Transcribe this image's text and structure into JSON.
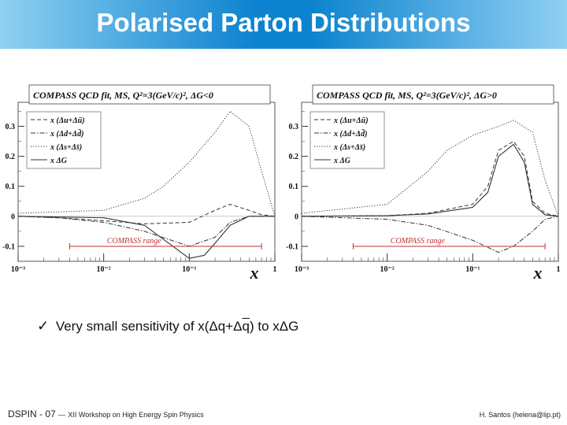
{
  "slide": {
    "title": "Polarised Parton Distributions",
    "bullet": {
      "check": "✓",
      "pre": "Very small sensitivity of x(Δq+Δ",
      "overline_q": "q",
      "post": ") to xΔG"
    },
    "footer_conference": "DSPIN - 07",
    "footer_dash": "—",
    "footer_subtitle": "XII Workshop on High Energy Spin Physics",
    "footer_author": "H. Santos (helena@lip.pt)"
  },
  "colors": {
    "title_bar": "#0d83cf",
    "title_text": "#ffffff",
    "curve": "#333333",
    "compass_range": "#c03030"
  },
  "chart_data": [
    {
      "type": "line",
      "title": "COMPASS QCD fit, MS, Q²=3(GeV/c)², ΔG<0",
      "xlabel": "x",
      "ylabel": "",
      "xscale": "log",
      "xlim": [
        0.001,
        1
      ],
      "ylim": [
        -0.15,
        0.38
      ],
      "xticks": [
        {
          "x": 0.001,
          "label": "10⁻³"
        },
        {
          "x": 0.01,
          "label": "10⁻²"
        },
        {
          "x": 0.1,
          "label": "10⁻¹"
        },
        {
          "x": 1,
          "label": "1"
        }
      ],
      "yticks": [
        {
          "y": -0.1,
          "label": "-0.1"
        },
        {
          "y": 0,
          "label": "0"
        },
        {
          "y": 0.1,
          "label": "0.1"
        },
        {
          "y": 0.2,
          "label": "0.2"
        },
        {
          "y": 0.3,
          "label": "0.3"
        }
      ],
      "annotation": {
        "text": "COMPASS range",
        "x_range": [
          0.004,
          0.7
        ]
      },
      "series": [
        {
          "name": "x (Δu+Δū)",
          "style": "dashed",
          "x": [
            0.001,
            0.003,
            0.01,
            0.03,
            0.1,
            0.2,
            0.3,
            0.5,
            0.7,
            1
          ],
          "y": [
            0,
            -0.005,
            -0.015,
            -0.025,
            -0.02,
            0.02,
            0.04,
            0.02,
            0.005,
            0
          ]
        },
        {
          "name": "x (Δd+Δd̄)",
          "style": "dashdot",
          "x": [
            0.001,
            0.003,
            0.01,
            0.03,
            0.1,
            0.2,
            0.3,
            0.5,
            0.7,
            1
          ],
          "y": [
            0,
            -0.005,
            -0.02,
            -0.05,
            -0.1,
            -0.07,
            -0.02,
            0,
            0,
            0
          ]
        },
        {
          "name": "x (Δs+Δs̄)",
          "style": "dotted",
          "x": [
            0.001,
            0.01,
            0.03,
            0.05,
            0.1,
            0.2,
            0.3,
            0.5,
            0.7,
            1
          ],
          "y": [
            0.01,
            0.02,
            0.06,
            0.1,
            0.18,
            0.28,
            0.35,
            0.3,
            0.15,
            0
          ]
        },
        {
          "name": "x ΔG",
          "style": "solid",
          "x": [
            0.001,
            0.01,
            0.03,
            0.08,
            0.1,
            0.15,
            0.2,
            0.3,
            0.5,
            1
          ],
          "y": [
            0,
            -0.005,
            -0.03,
            -0.12,
            -0.14,
            -0.13,
            -0.09,
            -0.03,
            0,
            0
          ]
        }
      ]
    },
    {
      "type": "line",
      "title": "COMPASS QCD fit, MS, Q²=3(GeV/c)², ΔG>0",
      "xlabel": "x",
      "ylabel": "",
      "xscale": "log",
      "xlim": [
        0.001,
        1
      ],
      "ylim": [
        -0.15,
        0.38
      ],
      "xticks": [
        {
          "x": 0.001,
          "label": "10⁻³"
        },
        {
          "x": 0.01,
          "label": "10⁻²"
        },
        {
          "x": 0.1,
          "label": "10⁻¹"
        },
        {
          "x": 1,
          "label": "1"
        }
      ],
      "yticks": [
        {
          "y": -0.1,
          "label": "-0.1"
        },
        {
          "y": 0,
          "label": "0"
        },
        {
          "y": 0.1,
          "label": "0.1"
        },
        {
          "y": 0.2,
          "label": "0.2"
        },
        {
          "y": 0.3,
          "label": "0.3"
        }
      ],
      "annotation": {
        "text": "COMPASS range",
        "x_range": [
          0.004,
          0.7
        ]
      },
      "series": [
        {
          "name": "x (Δu+Δū)",
          "style": "dashed",
          "x": [
            0.001,
            0.01,
            0.03,
            0.1,
            0.15,
            0.2,
            0.3,
            0.4,
            0.5,
            0.7,
            1
          ],
          "y": [
            0,
            0.002,
            0.01,
            0.04,
            0.1,
            0.22,
            0.25,
            0.2,
            0.05,
            0.01,
            0
          ]
        },
        {
          "name": "x (Δd+Δd̄)",
          "style": "dashdot",
          "x": [
            0.001,
            0.01,
            0.03,
            0.1,
            0.2,
            0.3,
            0.5,
            0.7,
            1
          ],
          "y": [
            0,
            -0.01,
            -0.03,
            -0.08,
            -0.12,
            -0.1,
            -0.05,
            -0.01,
            0
          ]
        },
        {
          "name": "x (Δs+Δs̄)",
          "style": "dotted",
          "x": [
            0.001,
            0.01,
            0.03,
            0.05,
            0.1,
            0.2,
            0.3,
            0.5,
            0.7,
            1
          ],
          "y": [
            0.01,
            0.04,
            0.15,
            0.22,
            0.27,
            0.3,
            0.32,
            0.28,
            0.12,
            0
          ]
        },
        {
          "name": "x ΔG",
          "style": "solid",
          "x": [
            0.001,
            0.01,
            0.03,
            0.1,
            0.15,
            0.2,
            0.3,
            0.4,
            0.5,
            0.7,
            1
          ],
          "y": [
            0,
            0.002,
            0.008,
            0.03,
            0.08,
            0.2,
            0.24,
            0.18,
            0.04,
            0.005,
            0
          ]
        }
      ]
    }
  ]
}
